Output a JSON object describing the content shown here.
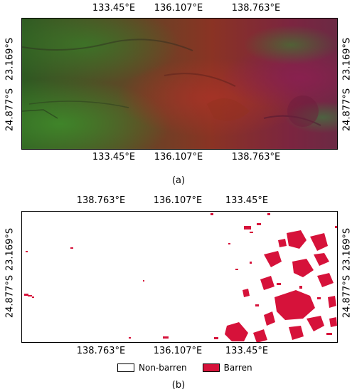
{
  "panel_a": {
    "caption": "(a)",
    "top_ticks": [
      "133.45°E",
      "136.107°E",
      "138.763°E"
    ],
    "bottom_ticks": [
      "133.45°E",
      "136.107°E",
      "138.763°E"
    ],
    "left_ticks": [
      "24.877°S",
      "23.169°S"
    ],
    "right_ticks": [
      "24.877°S",
      "23.169°S"
    ],
    "colors": {
      "green": "#2f6a26",
      "red": "#8a2a22",
      "magenta": "#7a2048",
      "dark": "#3b3228"
    }
  },
  "panel_b": {
    "caption": "(b)",
    "top_ticks": [
      "138.763°E",
      "136.107°E",
      "133.45°E"
    ],
    "bottom_ticks": [
      "138.763°E",
      "136.107°E",
      "133.45°E"
    ],
    "left_ticks": [
      "24.877°S",
      "23.169°S"
    ],
    "right_ticks": [
      "24.877°S",
      "23.169°S"
    ],
    "barren_color": "#d6123a"
  },
  "legend": {
    "items": [
      {
        "label": "Non-barren",
        "color": "#ffffff"
      },
      {
        "label": "Barren",
        "color": "#d6123a"
      }
    ]
  }
}
